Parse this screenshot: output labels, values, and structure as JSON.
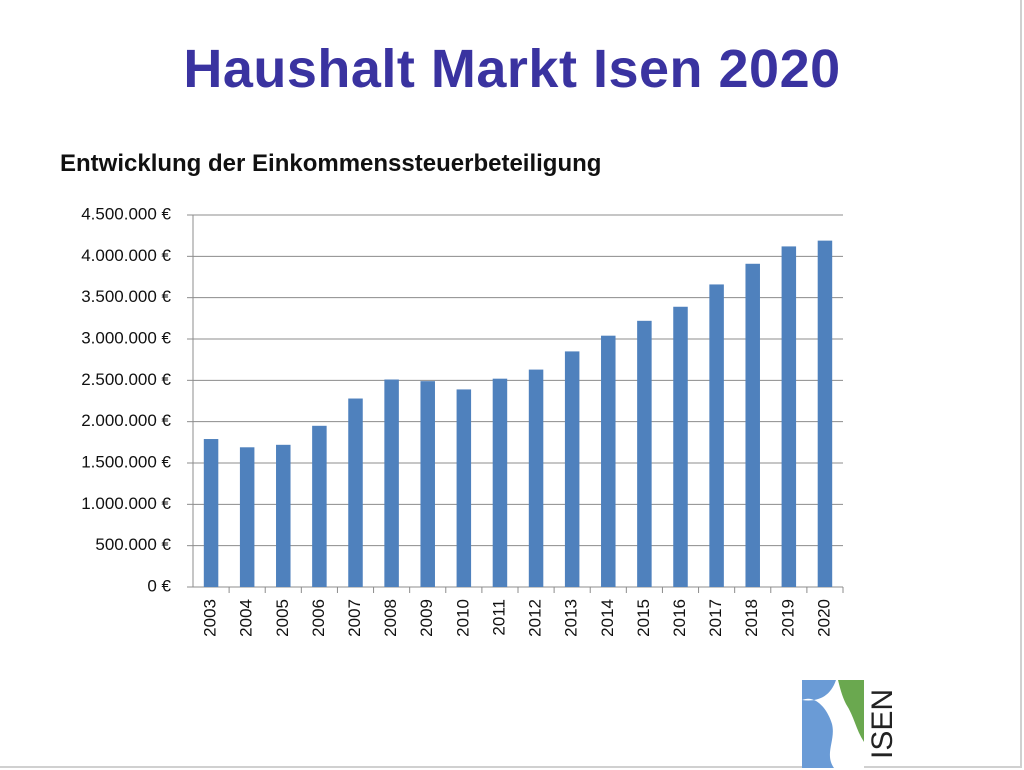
{
  "slide": {
    "title": "Haushalt Markt Isen 2020",
    "logo_text": "ISEN"
  },
  "colors": {
    "title": "#3a33a0",
    "bar": "#4f81bd",
    "logo_blue": "#6a9bd6",
    "logo_green": "#6aa84f"
  },
  "chart_data": {
    "type": "bar",
    "title": "Entwicklung der Einkommenssteuerbeteiligung",
    "categories": [
      "2003",
      "2004",
      "2005",
      "2006",
      "2007",
      "2008",
      "2009",
      "2010",
      "2011",
      "2012",
      "2013",
      "2014",
      "2015",
      "2016",
      "2017",
      "2018",
      "2019",
      "2020"
    ],
    "values": [
      1790000,
      1690000,
      1720000,
      1950000,
      2280000,
      2510000,
      2490000,
      2390000,
      2520000,
      2630000,
      2850000,
      3040000,
      3220000,
      3390000,
      3660000,
      3910000,
      4120000,
      4190000
    ],
    "ylim": [
      0,
      4500000
    ],
    "yticks": [
      0,
      500000,
      1000000,
      1500000,
      2000000,
      2500000,
      3000000,
      3500000,
      4000000,
      4500000
    ],
    "ytick_labels": [
      "0 €",
      "500.000 €",
      "1.000.000 €",
      "1.500.000 €",
      "2.000.000 €",
      "2.500.000 €",
      "3.000.000 €",
      "3.500.000 €",
      "4.000.000 €",
      "4.500.000 €"
    ],
    "xlabel": "",
    "ylabel": "",
    "grid": true,
    "legend": "none"
  }
}
